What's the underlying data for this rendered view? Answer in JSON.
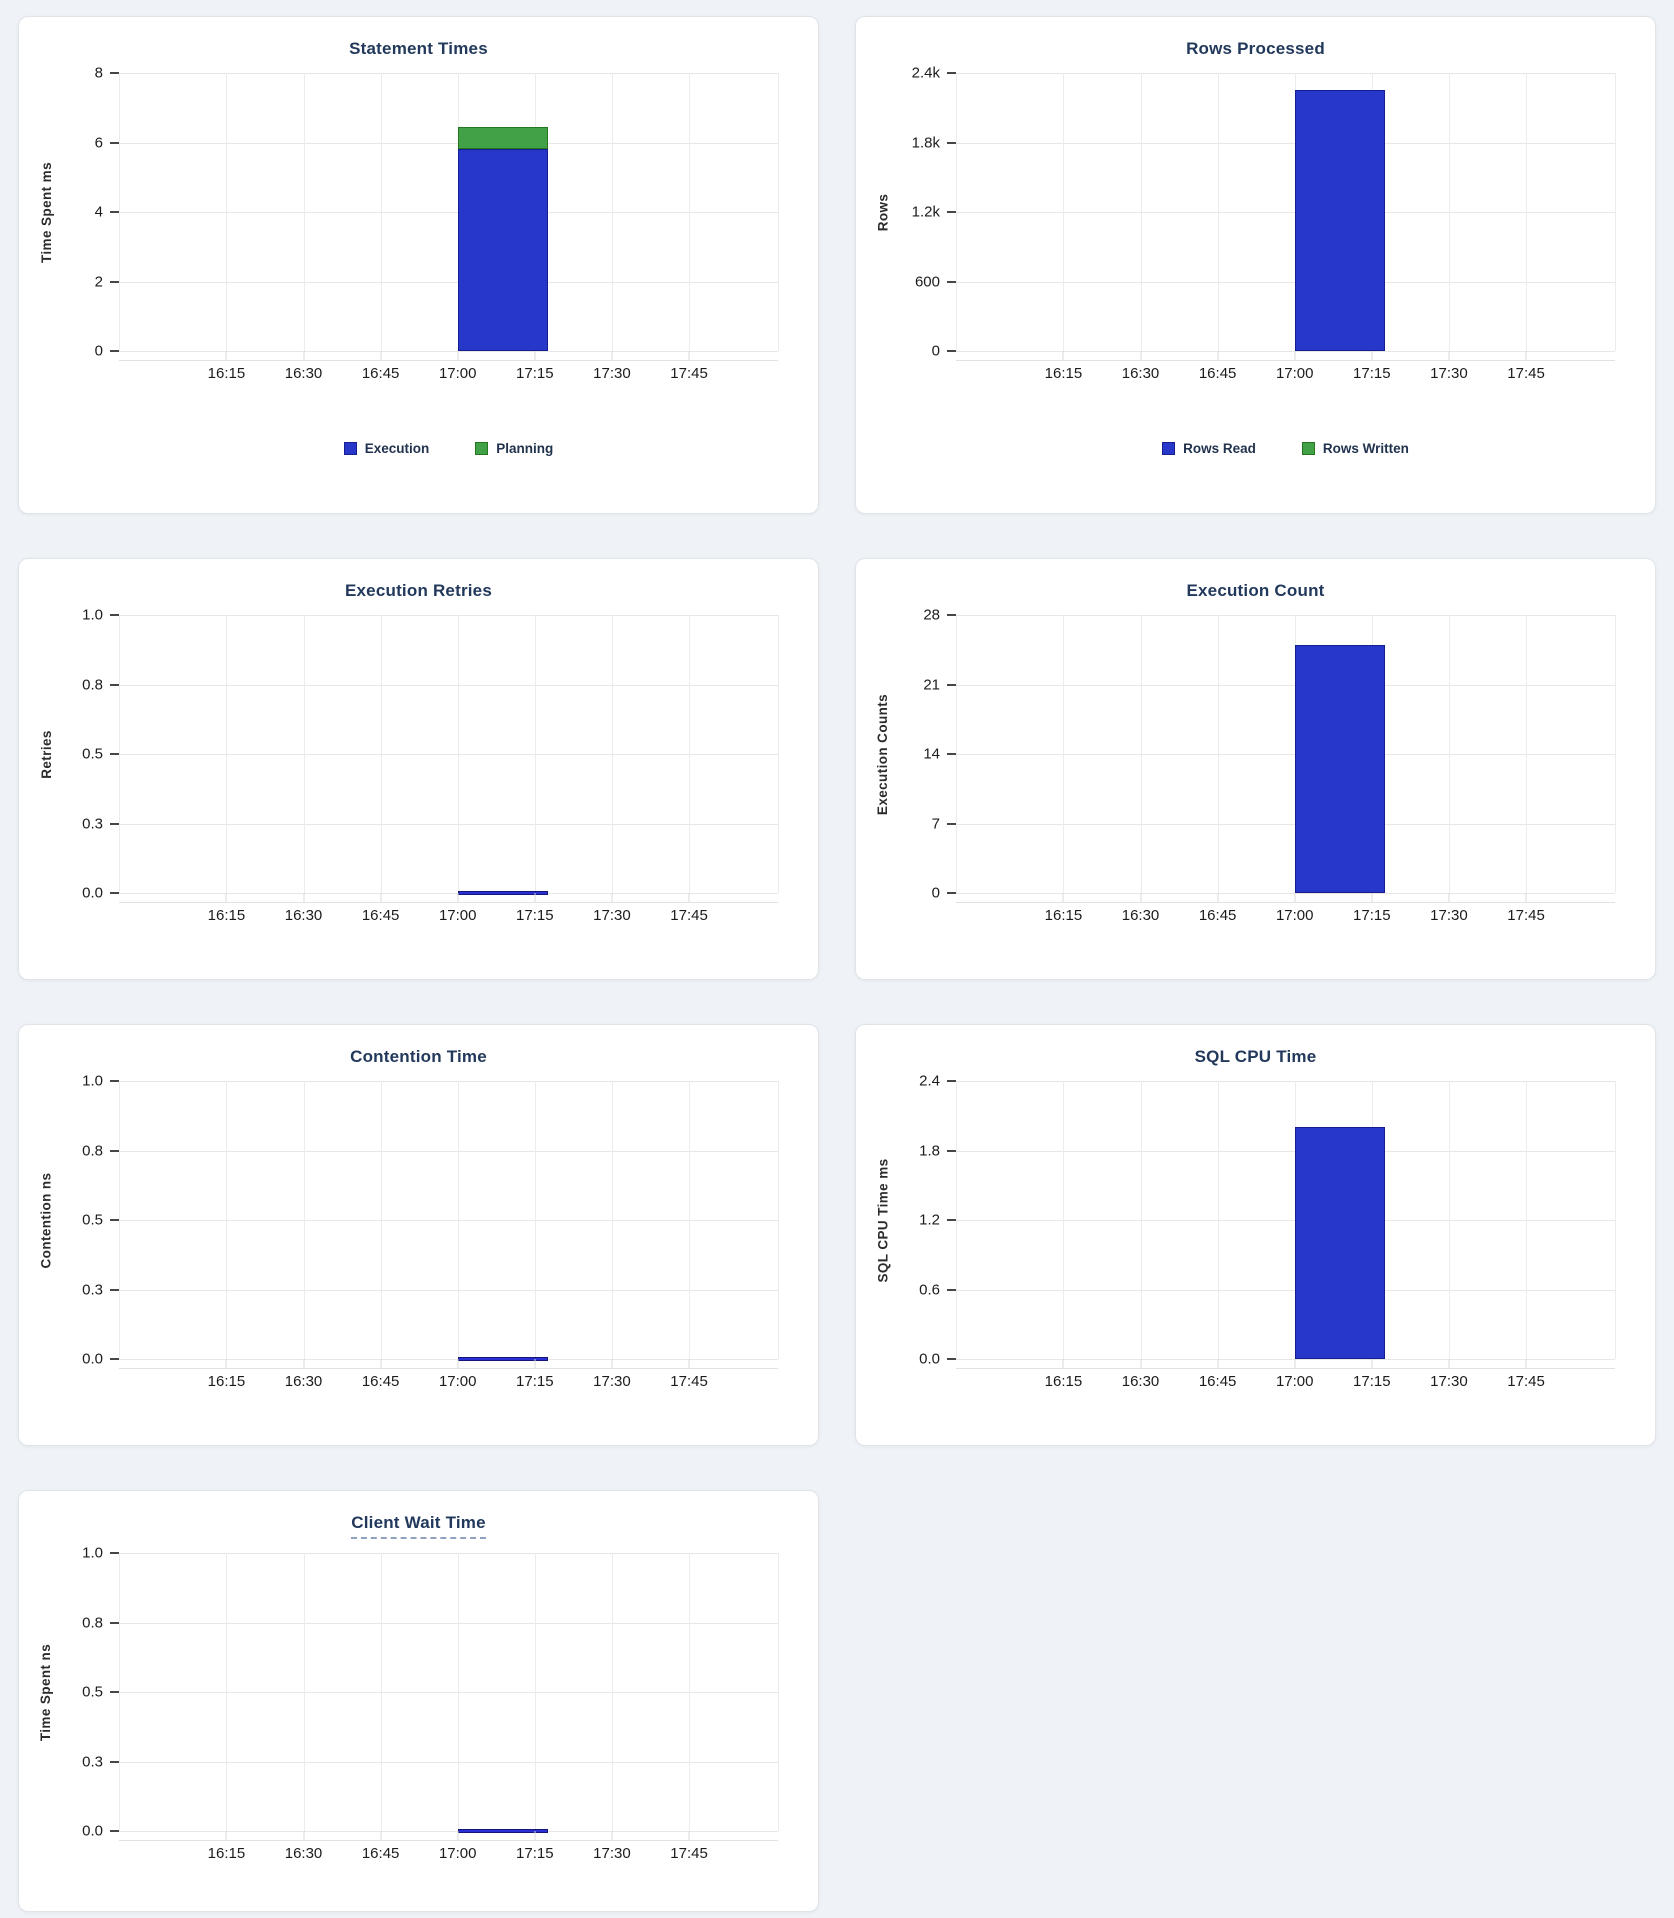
{
  "page": {
    "background": "#eff3f7",
    "card_background": "#ffffff"
  },
  "colors": {
    "series_blue": "#2637c9",
    "series_blue_border": "#161d8f",
    "series_green": "#41a146",
    "series_green_border": "#26761f",
    "title_text": "#22395c",
    "tick_text": "#1c1c1c"
  },
  "chart_data": [
    {
      "id": "statement-times",
      "type": "bar",
      "stacked": true,
      "title": "Statement Times",
      "ylabel": "Time Spent ms",
      "ylim": [
        0,
        8
      ],
      "y_ticks": [
        "8",
        "6",
        "4",
        "2",
        "0"
      ],
      "x_ticks": [
        "16:15",
        "16:30",
        "16:45",
        "17:00",
        "17:15",
        "17:30",
        "17:45"
      ],
      "x_window": [
        "17:00",
        "17:17"
      ],
      "grid": true,
      "legend_position": "bottom",
      "legend": [
        {
          "label": "Execution",
          "color": "#2637c9",
          "border": "#161d8f"
        },
        {
          "label": "Planning",
          "color": "#41a146",
          "border": "#26761f"
        }
      ],
      "series": [
        {
          "name": "Execution",
          "value": 5.8,
          "color": "#2637c9",
          "border": "#161d8f"
        },
        {
          "name": "Planning",
          "value": 0.65,
          "color": "#41a146",
          "border": "#26761f"
        }
      ]
    },
    {
      "id": "rows-processed",
      "type": "bar",
      "stacked": true,
      "title": "Rows Processed",
      "ylabel": "Rows",
      "ylim": [
        0,
        2400
      ],
      "y_ticks": [
        "2.4k",
        "1.8k",
        "1.2k",
        "600",
        "0"
      ],
      "x_ticks": [
        "16:15",
        "16:30",
        "16:45",
        "17:00",
        "17:15",
        "17:30",
        "17:45"
      ],
      "x_window": [
        "17:00",
        "17:17"
      ],
      "grid": true,
      "legend_position": "bottom",
      "legend": [
        {
          "label": "Rows Read",
          "color": "#2637c9",
          "border": "#161d8f"
        },
        {
          "label": "Rows Written",
          "color": "#41a146",
          "border": "#26761f"
        }
      ],
      "series": [
        {
          "name": "Rows Read",
          "value": 2250,
          "color": "#2637c9",
          "border": "#161d8f"
        },
        {
          "name": "Rows Written",
          "value": 0,
          "color": "#41a146",
          "border": "#26761f"
        }
      ]
    },
    {
      "id": "execution-retries",
      "type": "line",
      "title": "Execution Retries",
      "ylabel": "Retries",
      "ylim": [
        0,
        1
      ],
      "y_ticks": [
        "1.0",
        "0.8",
        "0.5",
        "0.3",
        "0.0"
      ],
      "x_ticks": [
        "16:15",
        "16:30",
        "16:45",
        "17:00",
        "17:15",
        "17:30",
        "17:45"
      ],
      "x_window": [
        "17:00",
        "17:17"
      ],
      "grid": true,
      "series": [
        {
          "name": "Retries",
          "value": 0,
          "color": "#2a2fd4",
          "border": "#141678"
        }
      ]
    },
    {
      "id": "execution-count",
      "type": "bar",
      "stacked": false,
      "title": "Execution Count",
      "ylabel": "Execution Counts",
      "ylim": [
        0,
        28
      ],
      "y_ticks": [
        "28",
        "21",
        "14",
        "7",
        "0"
      ],
      "x_ticks": [
        "16:15",
        "16:30",
        "16:45",
        "17:00",
        "17:15",
        "17:30",
        "17:45"
      ],
      "x_window": [
        "17:00",
        "17:17"
      ],
      "grid": true,
      "series": [
        {
          "name": "Execution Count",
          "value": 25,
          "color": "#2637c9",
          "border": "#161d8f"
        }
      ]
    },
    {
      "id": "contention-time",
      "type": "line",
      "title": "Contention Time",
      "ylabel": "Contention ns",
      "ylim": [
        0,
        1
      ],
      "y_ticks": [
        "1.0",
        "0.8",
        "0.5",
        "0.3",
        "0.0"
      ],
      "x_ticks": [
        "16:15",
        "16:30",
        "16:45",
        "17:00",
        "17:15",
        "17:30",
        "17:45"
      ],
      "x_window": [
        "17:00",
        "17:17"
      ],
      "grid": true,
      "series": [
        {
          "name": "Contention",
          "value": 0,
          "color": "#2a2fd4",
          "border": "#141678"
        }
      ]
    },
    {
      "id": "sql-cpu-time",
      "type": "bar",
      "stacked": false,
      "title": "SQL CPU Time",
      "ylabel": "SQL CPU Time ms",
      "ylim": [
        0,
        2.4
      ],
      "y_ticks": [
        "2.4",
        "1.8",
        "1.2",
        "0.6",
        "0.0"
      ],
      "x_ticks": [
        "16:15",
        "16:30",
        "16:45",
        "17:00",
        "17:15",
        "17:30",
        "17:45"
      ],
      "x_window": [
        "17:00",
        "17:17"
      ],
      "grid": true,
      "series": [
        {
          "name": "SQL CPU Time",
          "value": 2.0,
          "color": "#2637c9",
          "border": "#161d8f"
        }
      ]
    },
    {
      "id": "client-wait-time",
      "type": "line",
      "title": "Client Wait Time",
      "title_underline": "dashed",
      "ylabel": "Time Spent ns",
      "ylim": [
        0,
        1
      ],
      "y_ticks": [
        "1.0",
        "0.8",
        "0.5",
        "0.3",
        "0.0"
      ],
      "x_ticks": [
        "16:15",
        "16:30",
        "16:45",
        "17:00",
        "17:15",
        "17:30",
        "17:45"
      ],
      "x_window": [
        "17:00",
        "17:17"
      ],
      "grid": true,
      "series": [
        {
          "name": "Client Wait",
          "value": 0,
          "color": "#2a2fd4",
          "border": "#141678"
        }
      ]
    }
  ]
}
